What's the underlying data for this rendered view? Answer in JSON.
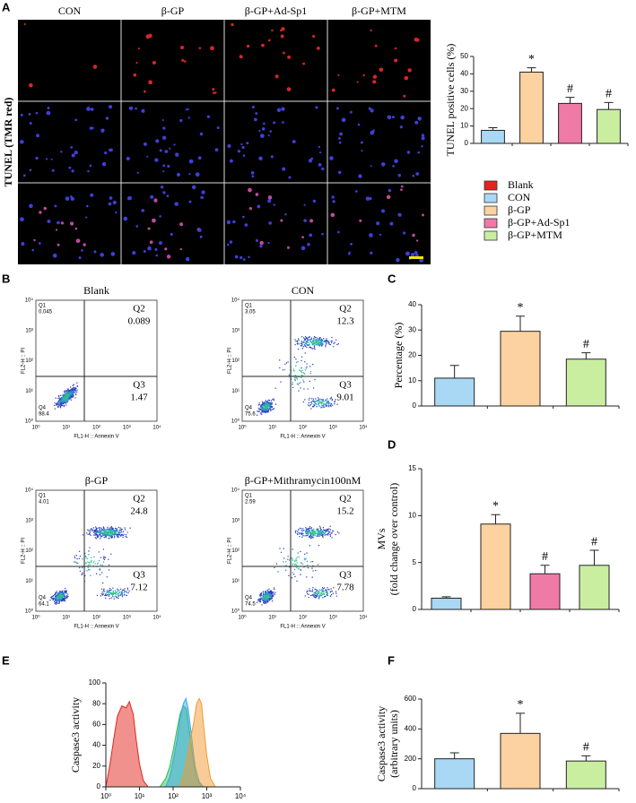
{
  "panel_labels": [
    "A",
    "B",
    "C",
    "D",
    "E",
    "F"
  ],
  "microscopy": {
    "columns": [
      "CON",
      "β-GP",
      "β-GP+Ad-Sp1",
      "β-GP+MTM"
    ],
    "row_label": "TUNEL (TMR red)"
  },
  "legend": [
    {
      "name": "Blank",
      "color": "#e3241b"
    },
    {
      "name": "CON",
      "color": "#a8d8f4"
    },
    {
      "name": "β-GP",
      "color": "#fcd2a0"
    },
    {
      "name": "β-GP+Ad-Sp1",
      "color": "#f07aa6"
    },
    {
      "name": "β-GP+MTM",
      "color": "#c9eea0"
    }
  ],
  "flow_cytometry": {
    "x_label": "FL1-H :: Annexin V",
    "y_label": "FL2-H :: PI",
    "tick_labels": [
      "10⁰",
      "10¹",
      "10²",
      "10³",
      "10⁴"
    ],
    "quadrant_names": [
      "Q1",
      "Q2",
      "Q3",
      "Q4"
    ],
    "plots": [
      {
        "title": "Blank",
        "quadrants": [
          0.045,
          0.089,
          1.47,
          98.4
        ]
      },
      {
        "title": "CON",
        "quadrants": [
          3.05,
          12.3,
          9.01,
          75.6
        ]
      },
      {
        "title": "β-GP",
        "quadrants": [
          4.01,
          24.8,
          7.12,
          64.1
        ]
      },
      {
        "title": "β-GP+Mithramycin100nM",
        "quadrants": [
          2.59,
          15.2,
          7.78,
          74.5
        ]
      }
    ]
  },
  "chart_data": [
    {
      "type": "bar",
      "y_label": [
        "TUNEL positive cells (%)"
      ],
      "categories": [
        null,
        null,
        null,
        null
      ],
      "values": [
        7.5,
        41,
        23,
        19.5
      ],
      "errors": [
        1.5,
        2.5,
        3.5,
        4
      ],
      "colors": [
        "#a8d8f4",
        "#fcd2a0",
        "#f07aa6",
        "#c9eea0"
      ],
      "annotations": [
        null,
        "*",
        "#",
        "#"
      ],
      "ylim": [
        0,
        50
      ],
      "yticks": [
        0,
        10,
        20,
        30,
        40,
        50
      ]
    },
    {
      "type": "bar",
      "y_label": [
        "Percentage (%)"
      ],
      "categories": [
        null,
        null,
        null
      ],
      "values": [
        11,
        29.5,
        18.5
      ],
      "errors": [
        5,
        6,
        2.5
      ],
      "colors": [
        "#a8d8f4",
        "#fcd2a0",
        "#c9eea0"
      ],
      "annotations": [
        null,
        "*",
        "#"
      ],
      "ylim": [
        0,
        40
      ],
      "yticks": [
        0,
        10,
        20,
        30,
        40
      ]
    },
    {
      "type": "bar",
      "y_label": [
        "MVs",
        "(fold change over control)"
      ],
      "categories": [
        null,
        null,
        null,
        null
      ],
      "values": [
        1.2,
        9.1,
        3.8,
        4.7
      ],
      "errors": [
        0.15,
        1,
        0.9,
        1.6
      ],
      "colors": [
        "#a8d8f4",
        "#fcd2a0",
        "#f07aa6",
        "#c9eea0"
      ],
      "annotations": [
        null,
        "*",
        "#",
        "#"
      ],
      "ylim": [
        0,
        15
      ],
      "yticks": [
        0,
        5,
        10,
        15
      ]
    },
    {
      "type": "area",
      "y_label": [
        "Caspase3 activity"
      ],
      "log_x": true,
      "xlim": [
        1,
        10000
      ],
      "xticks": [
        {
          "value": 1,
          "label": "10⁰"
        },
        {
          "value": 10,
          "label": "10¹"
        },
        {
          "value": 100,
          "label": "10²"
        },
        {
          "value": 1000,
          "label": "10³"
        },
        {
          "value": 10000,
          "label": "10⁴"
        }
      ],
      "ylim": [
        0,
        100
      ],
      "yticks": [
        0,
        20,
        40,
        60,
        80,
        100
      ],
      "series": [
        {
          "color": "#e3241b",
          "x": [
            1,
            1.3,
            1.7,
            2.2,
            3,
            4,
            5,
            6.5,
            8,
            10,
            13,
            18
          ],
          "values": [
            0,
            20,
            45,
            68,
            78,
            76,
            82,
            70,
            45,
            22,
            6,
            0
          ]
        },
        {
          "color": "#2fbf5a",
          "x": [
            40,
            60,
            80,
            100,
            130,
            160,
            200,
            250,
            300,
            400,
            500,
            700
          ],
          "values": [
            0,
            8,
            20,
            35,
            55,
            70,
            78,
            75,
            55,
            25,
            8,
            0
          ]
        },
        {
          "color": "#3aa8e8",
          "x": [
            60,
            80,
            100,
            130,
            160,
            200,
            240,
            280,
            350,
            450,
            600,
            800
          ],
          "values": [
            0,
            10,
            25,
            45,
            65,
            80,
            85,
            75,
            50,
            20,
            5,
            0
          ]
        },
        {
          "color": "#f39a30",
          "x": [
            150,
            200,
            250,
            300,
            400,
            500,
            600,
            700,
            800,
            1000,
            1300,
            1800
          ],
          "values": [
            0,
            10,
            25,
            40,
            60,
            80,
            85,
            80,
            60,
            30,
            8,
            0
          ]
        }
      ]
    },
    {
      "type": "bar",
      "y_label": [
        "Caspase3 activity",
        "(arbitrary units)"
      ],
      "categories": [
        null,
        null,
        null
      ],
      "values": [
        200,
        370,
        185
      ],
      "errors": [
        40,
        135,
        35
      ],
      "colors": [
        "#a8d8f4",
        "#fcd2a0",
        "#c9eea0"
      ],
      "annotations": [
        null,
        "*",
        "#"
      ],
      "ylim": [
        0,
        600
      ],
      "yticks": [
        0,
        200,
        400,
        600
      ]
    }
  ]
}
